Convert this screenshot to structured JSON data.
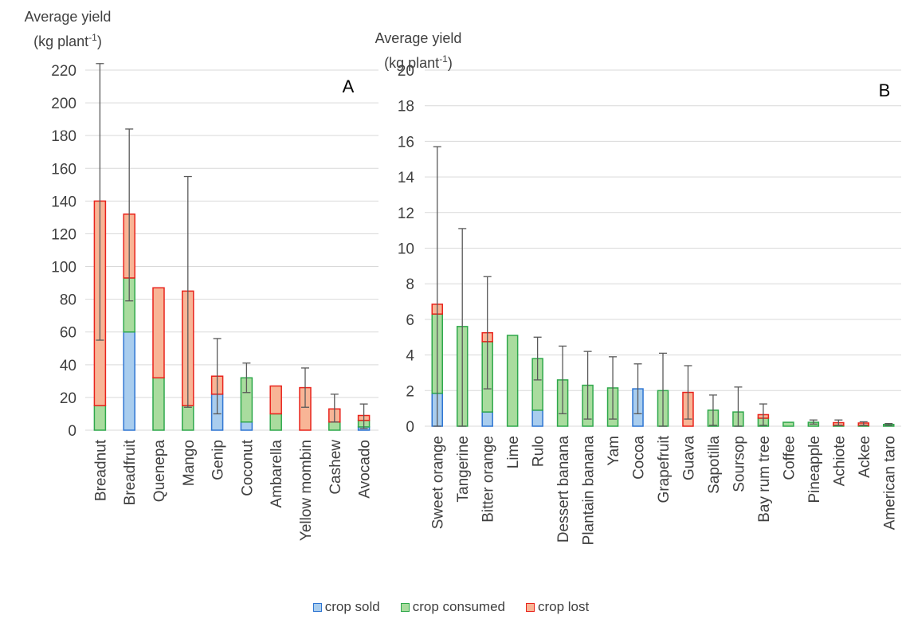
{
  "colors": {
    "sold": {
      "fill": "#a9cdee",
      "stroke": "#2e75d2"
    },
    "consumed": {
      "fill": "#a9dc9e",
      "stroke": "#2fa84b"
    },
    "lost": {
      "fill": "#f8b596",
      "stroke": "#e8231c"
    },
    "grid": "#d9d9d9",
    "error": "#595959"
  },
  "legend": [
    {
      "key": "sold",
      "label": "crop sold"
    },
    {
      "key": "consumed",
      "label": "crop consumed"
    },
    {
      "key": "lost",
      "label": "crop lost"
    }
  ],
  "chart_data": [
    {
      "type": "bar",
      "stacked": true,
      "panel_label": "A",
      "ylabel_line1": "Average yield",
      "ylabel_line2_base": "(kg plant",
      "ylabel_line2_sup": "-1",
      "ylabel_line2_end": ")",
      "ylim": [
        0,
        220
      ],
      "yticks": [
        0,
        20,
        40,
        60,
        80,
        100,
        120,
        140,
        160,
        180,
        200,
        220
      ],
      "grid": true,
      "categories": [
        "Breadnut",
        "Breadfruit",
        "Quenepa",
        "Mango",
        "Genip",
        "Coconut",
        "Ambarella",
        "Yellow mombin",
        "Cashew",
        "Avocado"
      ],
      "series": [
        {
          "name": "crop sold",
          "key": "sold",
          "values": [
            0,
            60,
            0,
            0,
            22,
            5,
            0,
            0,
            0,
            2
          ]
        },
        {
          "name": "crop consumed",
          "key": "consumed",
          "values": [
            15,
            33,
            32,
            15,
            0,
            27,
            10,
            0,
            5,
            4
          ]
        },
        {
          "name": "crop lost",
          "key": "lost",
          "values": [
            125,
            39,
            55,
            70,
            11,
            0,
            17,
            26,
            8,
            3
          ]
        }
      ],
      "error_low": [
        55,
        79,
        87,
        14,
        10,
        23,
        27,
        14,
        5,
        1
      ],
      "error_high": [
        224,
        184,
        87,
        155,
        56,
        41,
        27,
        38,
        22,
        16
      ]
    },
    {
      "type": "bar",
      "stacked": true,
      "panel_label": "B",
      "ylabel_line1": "Average yield",
      "ylabel_line2_base": "(kg plant",
      "ylabel_line2_sup": "-1",
      "ylabel_line2_end": ")",
      "ylim": [
        0,
        20
      ],
      "yticks": [
        0,
        2,
        4,
        6,
        8,
        10,
        12,
        14,
        16,
        18,
        20
      ],
      "grid": true,
      "categories": [
        "Sweet orange",
        "Tangerine",
        "Bitter orange",
        "Lime",
        "Rulo",
        "Dessert banana",
        "Plantain banana",
        "Yam",
        "Cocoa",
        "Grapefruit",
        "Guava",
        "Sapotilla",
        "Soursop",
        "Bay rum tree",
        "Coffee",
        "Pineapple",
        "Achiote",
        "Ackee",
        "American taro"
      ],
      "series": [
        {
          "name": "crop sold",
          "key": "sold",
          "values": [
            1.85,
            0,
            0.8,
            0,
            0.9,
            0,
            0,
            0,
            2.1,
            0,
            0,
            0,
            0,
            0,
            0,
            0,
            0,
            0,
            0
          ]
        },
        {
          "name": "crop consumed",
          "key": "consumed",
          "values": [
            4.45,
            5.6,
            3.95,
            5.1,
            2.9,
            2.6,
            2.3,
            2.15,
            0,
            2.0,
            0,
            0.9,
            0.8,
            0.45,
            0.22,
            0.22,
            0.05,
            0.05,
            0.1
          ]
        },
        {
          "name": "crop lost",
          "key": "lost",
          "values": [
            0.55,
            0,
            0.5,
            0,
            0,
            0,
            0,
            0,
            0,
            0,
            1.9,
            0,
            0,
            0.2,
            0,
            0,
            0.15,
            0.13,
            0
          ]
        }
      ],
      "error_low": [
        0,
        0,
        2.1,
        5.1,
        2.6,
        0.7,
        0.4,
        0.4,
        0.7,
        0,
        0.4,
        0.05,
        0,
        0.05,
        0.22,
        0.12,
        0.05,
        0.05,
        0.05
      ],
      "error_high": [
        15.7,
        11.1,
        8.4,
        5.1,
        5.0,
        4.5,
        4.2,
        3.9,
        3.5,
        4.1,
        3.4,
        1.75,
        2.2,
        1.25,
        0.22,
        0.35,
        0.35,
        0.25,
        0.15
      ]
    }
  ]
}
